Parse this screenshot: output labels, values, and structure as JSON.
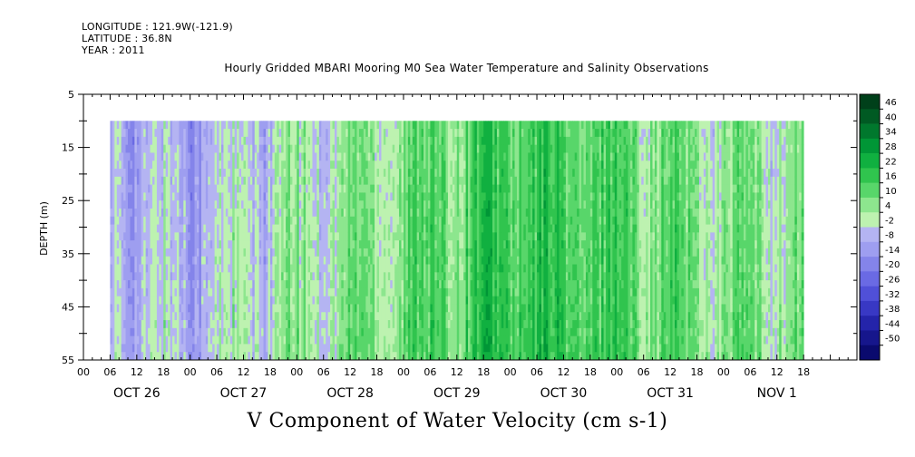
{
  "meta": {
    "longitude": "LONGITUDE : 121.9W(-121.9)",
    "latitude": "LATITUDE : 36.8N",
    "year": "YEAR : 2011"
  },
  "chart_data": {
    "type": "heatmap",
    "title": "Hourly Gridded MBARI Mooring M0 Sea Water Temperature and Salinity Observations",
    "xlabel": "",
    "ylabel": "DEPTH (m)",
    "footer": "V Component of Water Velocity (cm s-1)",
    "ylim": [
      5,
      55
    ],
    "y_ticks": [
      "5",
      "15",
      "25",
      "35",
      "45",
      "55"
    ],
    "x_hour_ticks": [
      "00",
      "06",
      "12",
      "18",
      "00",
      "06",
      "12",
      "18",
      "00",
      "06",
      "12",
      "18",
      "00",
      "06",
      "12",
      "18",
      "00",
      "06",
      "12",
      "18",
      "00",
      "06",
      "12",
      "18",
      "00",
      "06",
      "12",
      "18"
    ],
    "x_day_labels": [
      "OCT 26",
      "OCT 27",
      "OCT 28",
      "OCT 29",
      "OCT 30",
      "OCT 31",
      "NOV  1"
    ],
    "data_depth_range": [
      10,
      55
    ],
    "data_time_range_hours": [
      6,
      162
    ],
    "colorbar": {
      "levels": [
        "46",
        "40",
        "34",
        "28",
        "22",
        "16",
        "10",
        "4",
        "-2",
        "-8",
        "-14",
        "-20",
        "-26",
        "-32",
        "-38",
        "-44",
        "-50"
      ],
      "colors": [
        "#00401a",
        "#005a23",
        "#00782d",
        "#009636",
        "#10b040",
        "#30c44e",
        "#58d66a",
        "#8de68e",
        "#bdf2b0",
        "#b4b4f2",
        "#9e9ef0",
        "#8484ea",
        "#6a6ae4",
        "#5050d8",
        "#3838c4",
        "#2424aa",
        "#16168c",
        "#0a0a6e"
      ]
    },
    "approx_velocity_by_day": [
      {
        "period": "OCT 26",
        "v": -4
      },
      {
        "period": "OCT 27",
        "v": -6
      },
      {
        "period": "OCT 28",
        "v": 2
      },
      {
        "period": "OCT 29",
        "v": 10
      },
      {
        "period": "OCT 30",
        "v": 18
      },
      {
        "period": "OCT 31",
        "v": 14
      },
      {
        "period": "NOV  1",
        "v": 6
      }
    ]
  }
}
